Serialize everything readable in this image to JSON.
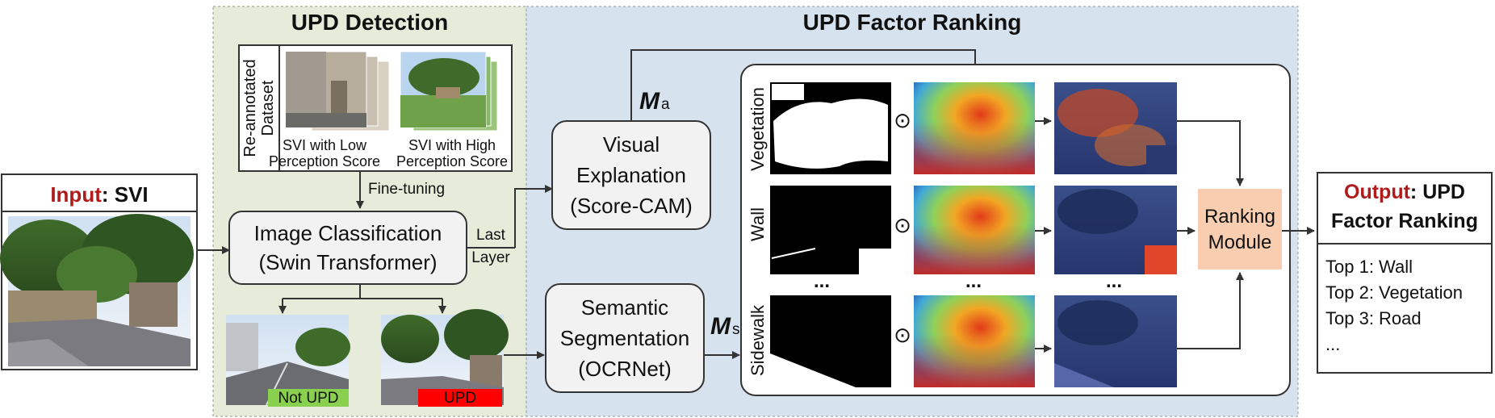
{
  "colors": {
    "detection_bg": "#e6ecd9",
    "ranking_bg": "#d6e3ee",
    "box_fill": "#f2f2f2",
    "box_stroke": "#333333",
    "accent_red": "#b01c1c",
    "not_upd_label": "#8ad04f",
    "upd_label": "#ff0000",
    "ranking_module": "#f8cdb0"
  },
  "input": {
    "title_accent": "Input",
    "title_rest": ": SVI"
  },
  "detection": {
    "title": "UPD Detection",
    "dataset_label_1": "Re-annotated",
    "dataset_label_2": "Dataset",
    "low_caption_1": "SVI with Low",
    "low_caption_2": "Perception Score",
    "high_caption_1": "SVI with High",
    "high_caption_2": "Perception Score",
    "fine_tuning": "Fine-tuning",
    "classification_1": "Image Classification",
    "classification_2": "(Swin Transformer)",
    "last_layer_1": "Last",
    "last_layer_2": "Layer",
    "not_upd": "Not UPD",
    "upd": "UPD"
  },
  "ranking": {
    "title": "UPD Factor Ranking",
    "visual_1": "Visual",
    "visual_2": "Explanation",
    "visual_3": "(Score-CAM)",
    "ma_main": "M",
    "ma_sub": "a",
    "semantic_1": "Semantic",
    "semantic_2": "Segmentation",
    "semantic_3": "(OCRNet)",
    "ms_main": "M",
    "ms_sub": "s",
    "row_labels": [
      "Vegetation",
      "Wall",
      "Sidewalk"
    ],
    "odot": "⊙",
    "ellipsis": "...",
    "module_1": "Ranking",
    "module_2": "Module"
  },
  "output": {
    "title_accent": "Output",
    "title_rest": ": UPD",
    "title_line2": "Factor Ranking",
    "items": [
      "Top 1: Wall",
      "Top 2: Vegetation",
      "Top 3: Road",
      "..."
    ]
  }
}
